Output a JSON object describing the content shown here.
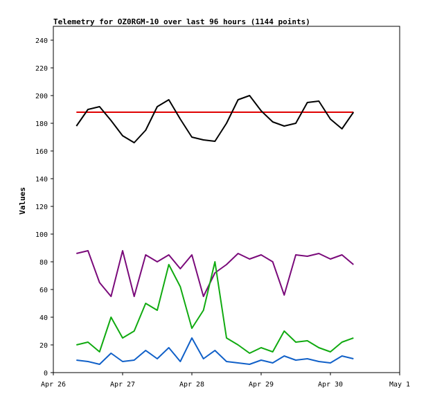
{
  "chart_data": {
    "type": "line",
    "title": "Telemetry for OZ0RGM-10 over last 96 hours (1144 points)",
    "xlabel": "",
    "ylabel": "Values",
    "xlim": [
      "Apr 26 00:00",
      "May 1 00:00"
    ],
    "ylim": [
      0,
      250
    ],
    "x_ticks": [
      "Apr 26",
      "Apr 27",
      "Apr 28",
      "Apr 29",
      "Apr 30",
      "May 1"
    ],
    "y_ticks": [
      0,
      20,
      40,
      60,
      80,
      100,
      120,
      140,
      160,
      180,
      200,
      220,
      240
    ],
    "grid": false,
    "legend": "none",
    "series": [
      {
        "color": "#e00000",
        "x": [
          "Apr 26 08:00",
          "Apr 26 18:00",
          "Apr 27 04:00",
          "Apr 27 14:00",
          "Apr 28 00:00",
          "Apr 28 10:00",
          "Apr 28 20:00",
          "Apr 29 06:00",
          "Apr 29 16:00",
          "Apr 30 02:00",
          "Apr 30 08:00"
        ],
        "values": [
          188,
          188,
          188,
          188,
          188,
          188,
          188,
          188,
          188,
          188,
          188
        ]
      },
      {
        "color": "#000000",
        "x": [
          "Apr 26 08:00",
          "Apr 26 12:00",
          "Apr 26 16:00",
          "Apr 26 20:00",
          "Apr 27 00:00",
          "Apr 27 04:00",
          "Apr 27 08:00",
          "Apr 27 12:00",
          "Apr 27 16:00",
          "Apr 27 20:00",
          "Apr 28 00:00",
          "Apr 28 04:00",
          "Apr 28 08:00",
          "Apr 28 12:00",
          "Apr 28 16:00",
          "Apr 28 20:00",
          "Apr 29 00:00",
          "Apr 29 04:00",
          "Apr 29 08:00",
          "Apr 29 12:00",
          "Apr 29 16:00",
          "Apr 29 20:00",
          "Apr 30 00:00",
          "Apr 30 04:00",
          "Apr 30 08:00"
        ],
        "values": [
          178,
          190,
          192,
          182,
          171,
          166,
          175,
          192,
          197,
          183,
          170,
          168,
          167,
          180,
          197,
          200,
          189,
          181,
          178,
          180,
          195,
          196,
          183,
          176,
          188
        ]
      },
      {
        "color": "#7a0a7a",
        "x": [
          "Apr 26 08:00",
          "Apr 26 12:00",
          "Apr 26 16:00",
          "Apr 26 20:00",
          "Apr 27 00:00",
          "Apr 27 04:00",
          "Apr 27 08:00",
          "Apr 27 12:00",
          "Apr 27 16:00",
          "Apr 27 20:00",
          "Apr 28 00:00",
          "Apr 28 04:00",
          "Apr 28 08:00",
          "Apr 28 12:00",
          "Apr 28 16:00",
          "Apr 28 20:00",
          "Apr 29 00:00",
          "Apr 29 04:00",
          "Apr 29 08:00",
          "Apr 29 12:00",
          "Apr 29 16:00",
          "Apr 29 20:00",
          "Apr 30 00:00",
          "Apr 30 04:00",
          "Apr 30 08:00"
        ],
        "values": [
          86,
          88,
          65,
          55,
          88,
          55,
          85,
          80,
          85,
          75,
          85,
          55,
          72,
          78,
          86,
          82,
          85,
          80,
          56,
          85,
          84,
          86,
          82,
          85,
          78
        ]
      },
      {
        "color": "#10aa10",
        "x": [
          "Apr 26 08:00",
          "Apr 26 12:00",
          "Apr 26 16:00",
          "Apr 26 20:00",
          "Apr 27 00:00",
          "Apr 27 04:00",
          "Apr 27 08:00",
          "Apr 27 12:00",
          "Apr 27 16:00",
          "Apr 27 20:00",
          "Apr 28 00:00",
          "Apr 28 04:00",
          "Apr 28 08:00",
          "Apr 28 12:00",
          "Apr 28 16:00",
          "Apr 28 20:00",
          "Apr 29 00:00",
          "Apr 29 04:00",
          "Apr 29 08:00",
          "Apr 29 12:00",
          "Apr 29 16:00",
          "Apr 29 20:00",
          "Apr 30 00:00",
          "Apr 30 04:00",
          "Apr 30 08:00"
        ],
        "values": [
          20,
          22,
          15,
          40,
          25,
          30,
          50,
          45,
          78,
          62,
          32,
          45,
          80,
          25,
          20,
          14,
          18,
          15,
          30,
          22,
          23,
          18,
          15,
          22,
          25
        ]
      },
      {
        "color": "#1060c8",
        "x": [
          "Apr 26 08:00",
          "Apr 26 12:00",
          "Apr 26 16:00",
          "Apr 26 20:00",
          "Apr 27 00:00",
          "Apr 27 04:00",
          "Apr 27 08:00",
          "Apr 27 12:00",
          "Apr 27 16:00",
          "Apr 27 20:00",
          "Apr 28 00:00",
          "Apr 28 04:00",
          "Apr 28 08:00",
          "Apr 28 12:00",
          "Apr 28 16:00",
          "Apr 28 20:00",
          "Apr 29 00:00",
          "Apr 29 04:00",
          "Apr 29 08:00",
          "Apr 29 12:00",
          "Apr 29 16:00",
          "Apr 29 20:00",
          "Apr 30 00:00",
          "Apr 30 04:00",
          "Apr 30 08:00"
        ],
        "values": [
          9,
          8,
          6,
          14,
          8,
          9,
          16,
          10,
          18,
          8,
          25,
          10,
          16,
          8,
          7,
          6,
          9,
          7,
          12,
          9,
          10,
          8,
          7,
          12,
          10
        ]
      }
    ]
  }
}
